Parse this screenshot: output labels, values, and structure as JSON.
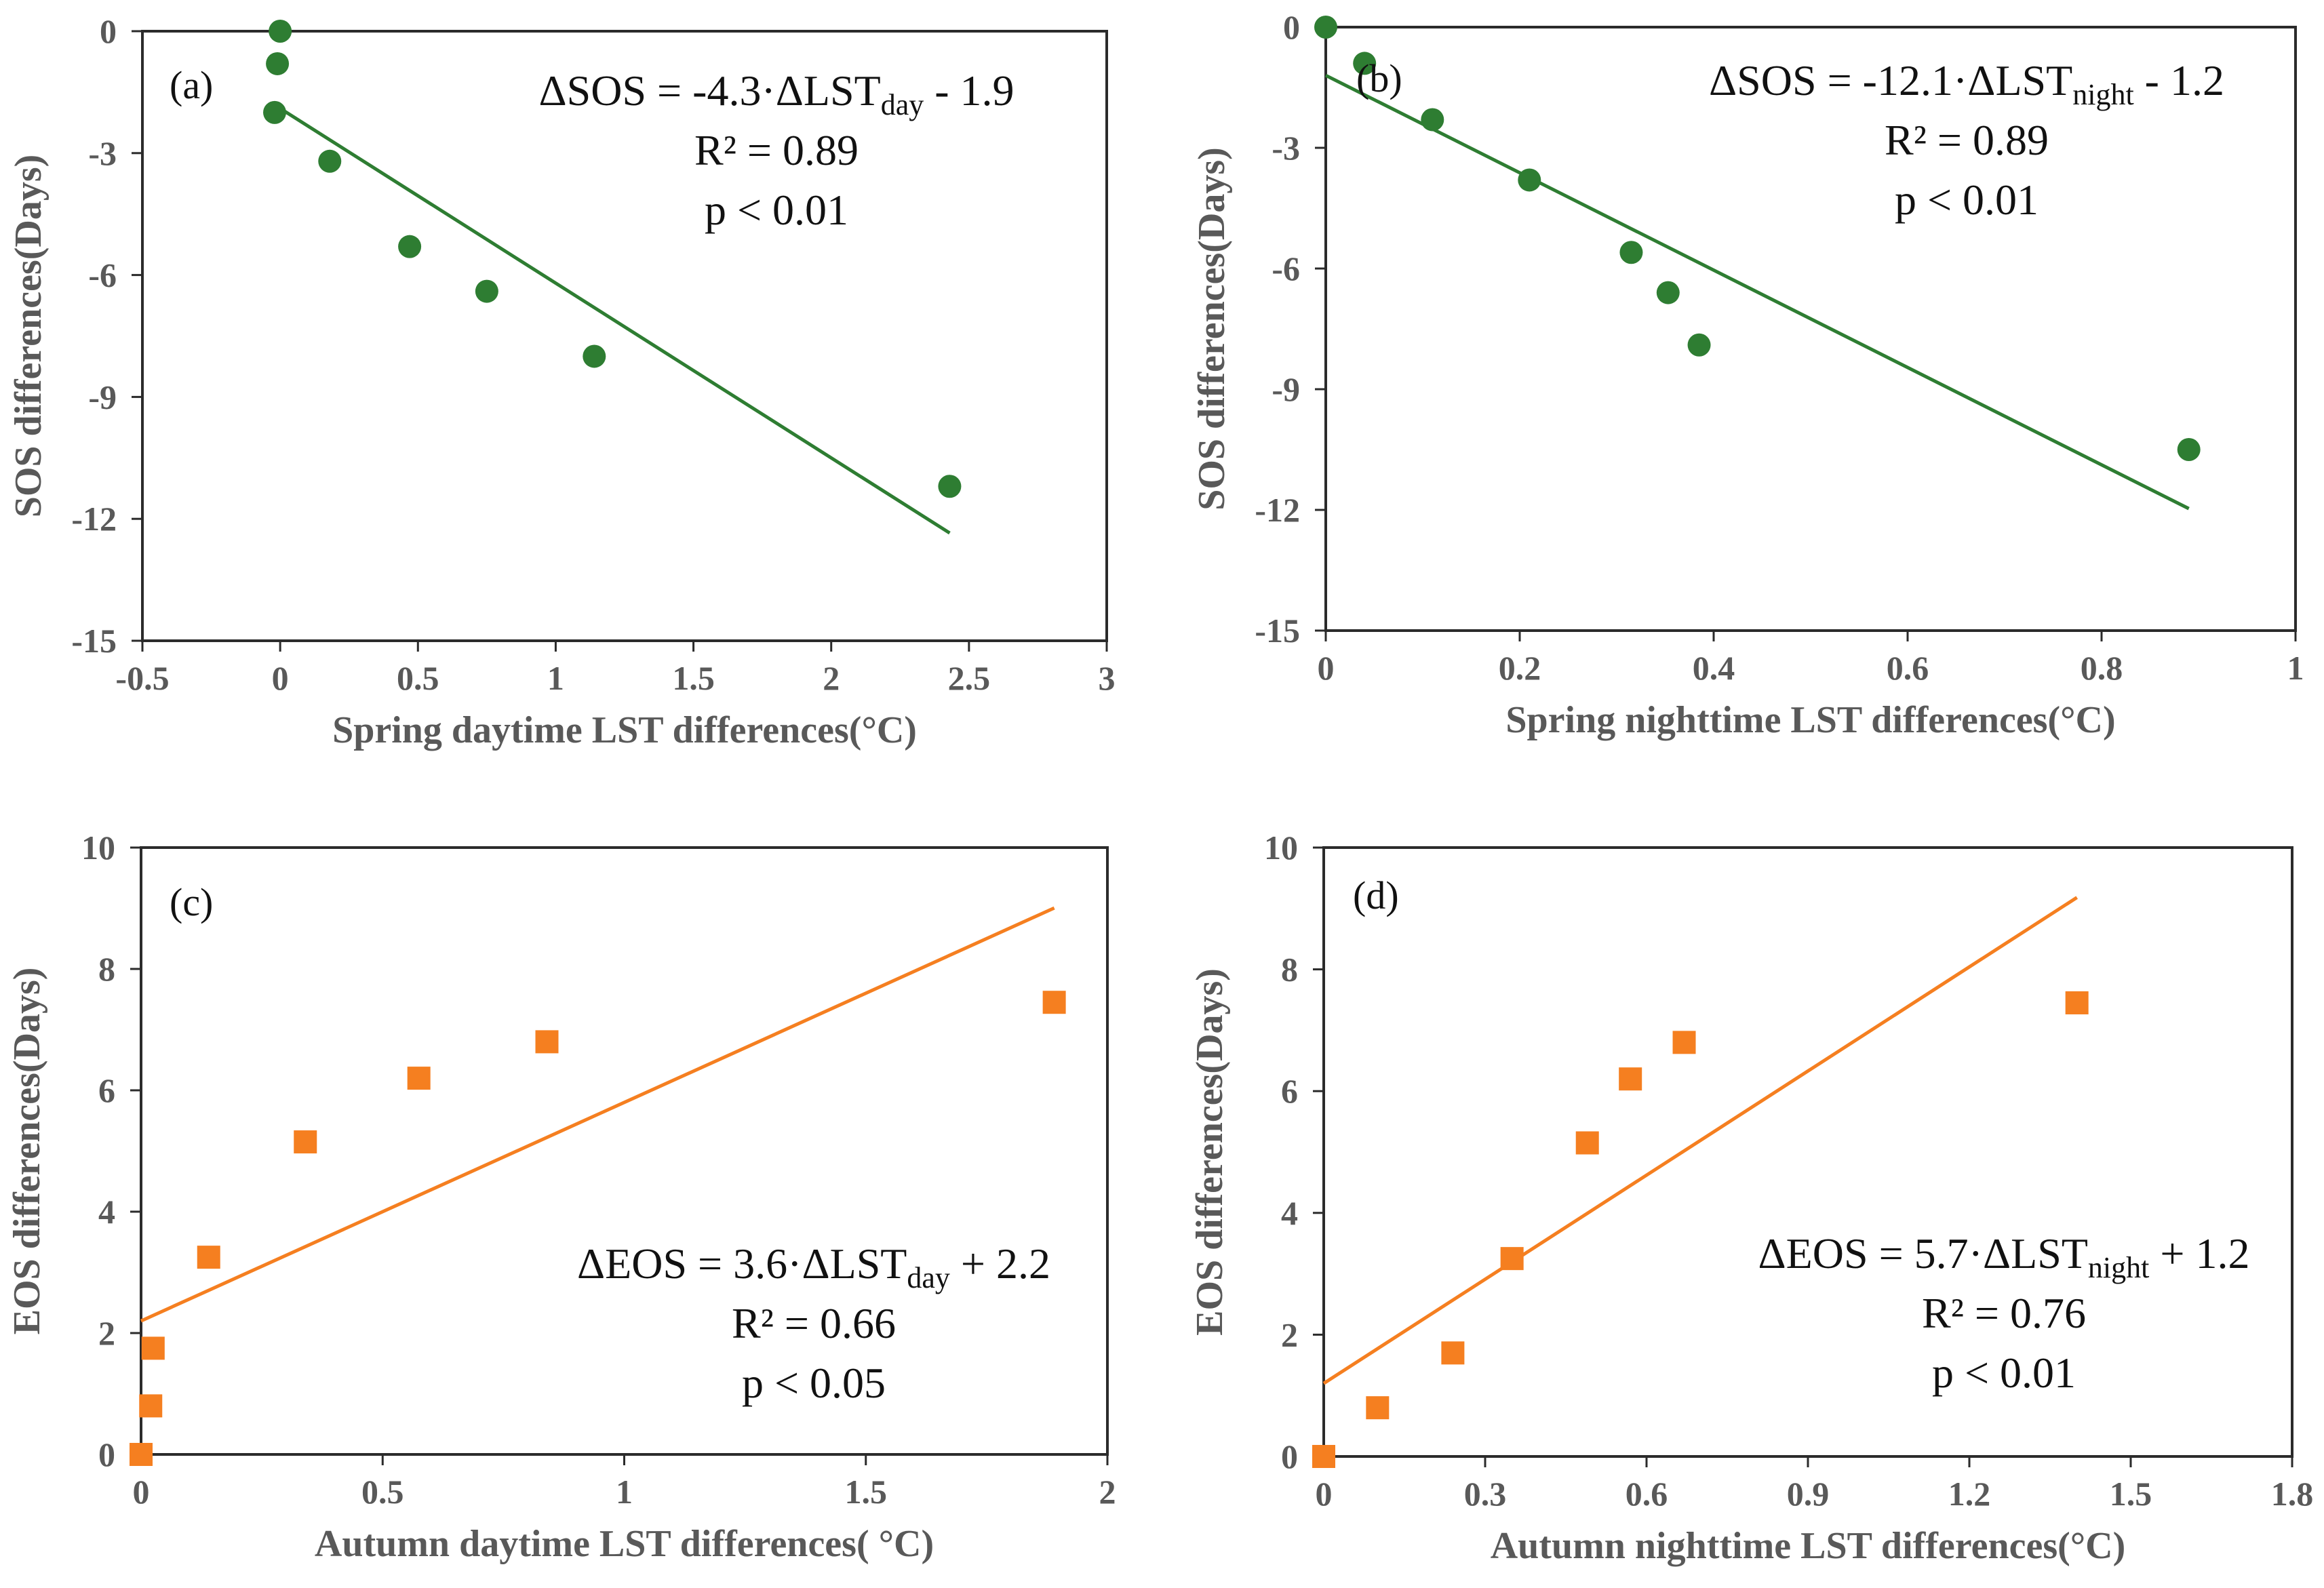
{
  "figure_title": "",
  "chart_data": [
    {
      "type": "scatter",
      "panel_label": "(a)",
      "title": "",
      "xlabel": "Spring daytime LST differences(°C)",
      "ylabel": "SOS differences(Days)",
      "xlim": [
        -0.5,
        3
      ],
      "ylim": [
        -15,
        0
      ],
      "xticks": [
        -0.5,
        0,
        0.5,
        1,
        1.5,
        2,
        2.5,
        3
      ],
      "xtick_labels": [
        "-0.5",
        "0",
        "0.5",
        "1",
        "1.5",
        "2",
        "2.5",
        "3"
      ],
      "yticks": [
        0,
        -3,
        -6,
        -9,
        -12,
        -15
      ],
      "ytick_labels": [
        "0",
        "-3",
        "-6",
        "-9",
        "-12",
        "-15"
      ],
      "marker": "circle",
      "color": "#2e7d32",
      "x": [
        0.0,
        -0.01,
        -0.02,
        0.18,
        0.47,
        0.75,
        1.14,
        2.43
      ],
      "y": [
        0.0,
        -0.8,
        -2.0,
        -3.2,
        -5.3,
        -6.4,
        -8.0,
        -11.2
      ],
      "fit": {
        "slope": -4.3,
        "intercept": -1.9,
        "x_range": [
          -0.02,
          2.43
        ]
      },
      "equation": {
        "lhs": "ΔSOS = -4.3·ΔLST",
        "sub": "day",
        "rhs": " - 1.9"
      },
      "r2_text": "R² = 0.89",
      "p_text": "p < 0.01"
    },
    {
      "type": "scatter",
      "panel_label": "(b)",
      "title": "",
      "xlabel": "Spring nighttime LST differences(°C)",
      "ylabel": "SOS differences(Days)",
      "xlim": [
        0,
        1
      ],
      "ylim": [
        -15,
        0
      ],
      "xticks": [
        0,
        0.2,
        0.4,
        0.6,
        0.8,
        1
      ],
      "xtick_labels": [
        "0",
        "0.2",
        "0.4",
        "0.6",
        "0.8",
        "1"
      ],
      "yticks": [
        0,
        -3,
        -6,
        -9,
        -12,
        -15
      ],
      "ytick_labels": [
        "0",
        "-3",
        "-6",
        "-9",
        "-12",
        "-15"
      ],
      "marker": "circle",
      "color": "#2e7d32",
      "x": [
        0.0,
        0.04,
        0.11,
        0.21,
        0.315,
        0.353,
        0.385,
        0.89
      ],
      "y": [
        0.0,
        -0.9,
        -2.3,
        -3.8,
        -5.6,
        -6.6,
        -7.9,
        -10.5
      ],
      "fit": {
        "slope": -12.1,
        "intercept": -1.2,
        "x_range": [
          0.0,
          0.89
        ]
      },
      "equation": {
        "lhs": "ΔSOS = -12.1·ΔLST",
        "sub": "night",
        "rhs": " - 1.2"
      },
      "r2_text": "R² = 0.89",
      "p_text": "p < 0.01"
    },
    {
      "type": "scatter",
      "panel_label": "(c)",
      "title": "",
      "xlabel": "Autumn daytime LST differences( °C)",
      "ylabel": "EOS differences(Days)",
      "xlim": [
        0,
        2
      ],
      "ylim": [
        0,
        10
      ],
      "xticks": [
        0,
        0.5,
        1,
        1.5,
        2
      ],
      "xtick_labels": [
        "0",
        "0.5",
        "1",
        "1.5",
        "2"
      ],
      "yticks": [
        0,
        2,
        4,
        6,
        8,
        10
      ],
      "ytick_labels": [
        "0",
        "2",
        "4",
        "6",
        "8",
        "10"
      ],
      "marker": "square",
      "color": "#f57f20",
      "x": [
        0.0,
        0.02,
        0.025,
        0.14,
        0.34,
        0.575,
        0.84,
        1.89
      ],
      "y": [
        0.0,
        0.8,
        1.75,
        3.25,
        5.15,
        6.2,
        6.8,
        7.45
      ],
      "fit": {
        "slope": 3.6,
        "intercept": 2.2,
        "x_range": [
          0.0,
          1.89
        ]
      },
      "equation": {
        "lhs": "ΔEOS = 3.6·ΔLST",
        "sub": "day",
        "rhs": " + 2.2"
      },
      "r2_text": "R² = 0.66",
      "p_text": "p < 0.05"
    },
    {
      "type": "scatter",
      "panel_label": "(d)",
      "title": "",
      "xlabel": "Autumn nighttime LST differences(°C)",
      "ylabel": "EOS differences(Days)",
      "xlim": [
        0,
        1.8
      ],
      "ylim": [
        0,
        10
      ],
      "xticks": [
        0,
        0.3,
        0.6,
        0.9,
        1.2,
        1.5,
        1.8
      ],
      "xtick_labels": [
        "0",
        "0.3",
        "0.6",
        "0.9",
        "1.2",
        "1.5",
        "1.8"
      ],
      "yticks": [
        0,
        2,
        4,
        6,
        8,
        10
      ],
      "ytick_labels": [
        "0",
        "2",
        "4",
        "6",
        "8",
        "10"
      ],
      "marker": "square",
      "color": "#f57f20",
      "x": [
        0.0,
        0.1,
        0.24,
        0.35,
        0.49,
        0.57,
        0.67,
        1.4
      ],
      "y": [
        0.0,
        0.8,
        1.7,
        3.25,
        5.15,
        6.2,
        6.8,
        7.45
      ],
      "fit": {
        "slope": 5.7,
        "intercept": 1.2,
        "x_range": [
          0.0,
          1.4
        ]
      },
      "equation": {
        "lhs": "ΔEOS = 5.7·ΔLST",
        "sub": "night",
        "rhs": " + 1.2"
      },
      "r2_text": "R² = 0.76",
      "p_text": "p < 0.01"
    }
  ]
}
